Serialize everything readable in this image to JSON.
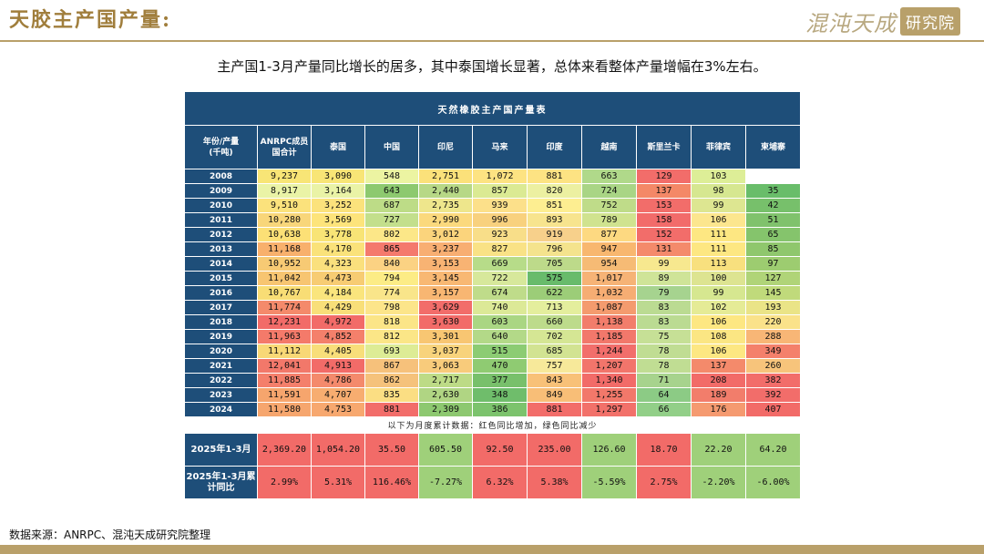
{
  "header": {
    "title": "天胶主产国产量:",
    "logo_text": "混沌天成",
    "logo_badge": "研究院"
  },
  "subtitle": "主产国1-3月产量同比增长的居多，其中泰国增长显著，总体来看整体产量增幅在3%左右。",
  "table": {
    "caption": "天然橡胶主产国产量表",
    "corner_header": "年份/产量\n(千吨)",
    "columns": [
      "ANRPC成员国合计",
      "泰国",
      "中国",
      "印尼",
      "马来",
      "印度",
      "越南",
      "斯里兰卡",
      "菲律宾",
      "柬埔寨"
    ],
    "rows": [
      {
        "year": "2008",
        "values": [
          "9,237",
          "3,090",
          "548",
          "2,751",
          "1,072",
          "881",
          "663",
          "129",
          "103",
          ""
        ]
      },
      {
        "year": "2009",
        "values": [
          "8,917",
          "3,164",
          "643",
          "2,440",
          "857",
          "820",
          "724",
          "137",
          "98",
          "35"
        ]
      },
      {
        "year": "2010",
        "values": [
          "9,510",
          "3,252",
          "687",
          "2,735",
          "939",
          "851",
          "752",
          "153",
          "99",
          "42"
        ]
      },
      {
        "year": "2011",
        "values": [
          "10,280",
          "3,569",
          "727",
          "2,990",
          "996",
          "893",
          "789",
          "158",
          "106",
          "51"
        ]
      },
      {
        "year": "2012",
        "values": [
          "10,638",
          "3,778",
          "802",
          "3,012",
          "923",
          "919",
          "877",
          "152",
          "111",
          "65"
        ]
      },
      {
        "year": "2013",
        "values": [
          "11,168",
          "4,170",
          "865",
          "3,237",
          "827",
          "796",
          "947",
          "131",
          "111",
          "85"
        ]
      },
      {
        "year": "2014",
        "values": [
          "10,952",
          "4,323",
          "840",
          "3,153",
          "669",
          "705",
          "954",
          "99",
          "113",
          "97"
        ]
      },
      {
        "year": "2015",
        "values": [
          "11,042",
          "4,473",
          "794",
          "3,145",
          "722",
          "575",
          "1,017",
          "89",
          "100",
          "127"
        ]
      },
      {
        "year": "2016",
        "values": [
          "10,767",
          "4,184",
          "774",
          "3,157",
          "674",
          "622",
          "1,032",
          "79",
          "99",
          "145"
        ]
      },
      {
        "year": "2017",
        "values": [
          "11,774",
          "4,429",
          "798",
          "3,629",
          "740",
          "713",
          "1,087",
          "83",
          "102",
          "193"
        ]
      },
      {
        "year": "2018",
        "values": [
          "12,231",
          "4,972",
          "818",
          "3,630",
          "603",
          "660",
          "1,138",
          "83",
          "106",
          "220"
        ]
      },
      {
        "year": "2019",
        "values": [
          "11,963",
          "4,852",
          "812",
          "3,301",
          "640",
          "702",
          "1,185",
          "75",
          "108",
          "288"
        ]
      },
      {
        "year": "2020",
        "values": [
          "11,112",
          "4,405",
          "693",
          "3,037",
          "515",
          "685",
          "1,244",
          "78",
          "106",
          "349"
        ]
      },
      {
        "year": "2021",
        "values": [
          "12,041",
          "4,913",
          "867",
          "3,063",
          "470",
          "757",
          "1,207",
          "78",
          "137",
          "260"
        ]
      },
      {
        "year": "2022",
        "values": [
          "11,885",
          "4,786",
          "862",
          "2,717",
          "377",
          "843",
          "1,340",
          "71",
          "208",
          "382"
        ]
      },
      {
        "year": "2023",
        "values": [
          "11,591",
          "4,707",
          "835",
          "2,630",
          "348",
          "849",
          "1,255",
          "64",
          "189",
          "392"
        ]
      },
      {
        "year": "2024",
        "values": [
          "11,580",
          "4,753",
          "881",
          "2,309",
          "386",
          "881",
          "1,297",
          "66",
          "176",
          "407"
        ]
      }
    ],
    "colors": [
      [
        "#f8e576",
        "#f8e576",
        "#ecf4a2",
        "#fbe17a",
        "#fde382",
        "#fde383",
        "#b0d98a",
        "#f26d6a",
        "#ddee97",
        "#ffffff"
      ],
      [
        "#eaf3a6",
        "#eaf3a6",
        "#8dc96f",
        "#b7d886",
        "#dbea93",
        "#ecf0a1",
        "#a9d585",
        "#f48867",
        "#d6e790",
        "#69bd6a"
      ],
      [
        "#fbe27c",
        "#fbe27c",
        "#bddc87",
        "#eee68c",
        "#fce08a",
        "#fdee91",
        "#bfdc89",
        "#f26d6a",
        "#dde691",
        "#77c06b"
      ],
      [
        "#f8d67a",
        "#fde47b",
        "#c3df8c",
        "#fbd97d",
        "#f8d17e",
        "#f7e48e",
        "#d0e38f",
        "#f26b6a",
        "#fce68e",
        "#80c26c"
      ],
      [
        "#fce076",
        "#f8e476",
        "#fce788",
        "#fbd47c",
        "#f8de89",
        "#f7d08b",
        "#fdd981",
        "#f26d6a",
        "#fde782",
        "#85c46c"
      ],
      [
        "#f8b06c",
        "#fae27a",
        "#f4796d",
        "#f8ae72",
        "#f9e286",
        "#f4e38d",
        "#f8b76f",
        "#f48a6b",
        "#fde782",
        "#8fc76d"
      ],
      [
        "#f7ca74",
        "#fae07d",
        "#fbd283",
        "#f8b373",
        "#b7dc89",
        "#bdda8a",
        "#f6bb75",
        "#f7e88f",
        "#f8e07e",
        "#9dcc70"
      ],
      [
        "#f7c571",
        "#f7cc73",
        "#fcec86",
        "#f8b873",
        "#d7e89b",
        "#68bb6b",
        "#f6b376",
        "#cfe498",
        "#dde491",
        "#b0d478"
      ],
      [
        "#f8dd75",
        "#fae57d",
        "#f9e58a",
        "#f8b672",
        "#bfdc8a",
        "#9ccd78",
        "#f6ad73",
        "#a6d38f",
        "#d6e790",
        "#c0da7b"
      ],
      [
        "#f48a6b",
        "#f8df79",
        "#fce58a",
        "#f26d6a",
        "#dce997",
        "#e4ee9d",
        "#f49b6e",
        "#bbdb92",
        "#e5eb96",
        "#eae487"
      ],
      [
        "#f26b68",
        "#f26b68",
        "#fbe587",
        "#f26b68",
        "#aad683",
        "#bddb8b",
        "#f27d6b",
        "#bbdb92",
        "#fde782",
        "#fae28a"
      ],
      [
        "#f47a6a",
        "#f4806b",
        "#fbe687",
        "#f8c672",
        "#b3d988",
        "#d5e694",
        "#f2786b",
        "#c6e096",
        "#fbe683",
        "#f8b676"
      ],
      [
        "#f8d876",
        "#f8de7a",
        "#ddec95",
        "#f8d37c",
        "#8ccc73",
        "#d2e392",
        "#f26e6b",
        "#c0dd93",
        "#fde782",
        "#f4806b"
      ],
      [
        "#f2786a",
        "#f26b68",
        "#f6c17b",
        "#f8cb7b",
        "#8fcb72",
        "#f7e99a",
        "#f2756b",
        "#c0dd93",
        "#f48a6b",
        "#f7c47b"
      ],
      [
        "#f47f6b",
        "#f48a6c",
        "#f5c27b",
        "#bddb86",
        "#78c06b",
        "#f8c178",
        "#f26b68",
        "#a7d38d",
        "#f26b68",
        "#f26d6a"
      ],
      [
        "#f6a56d",
        "#f7ad70",
        "#fbde83",
        "#b0d583",
        "#6fbd6b",
        "#f8be77",
        "#f2786a",
        "#8ccb85",
        "#f27d6b",
        "#f26d6a"
      ],
      [
        "#f6a66e",
        "#f7a86f",
        "#f26d6a",
        "#8dc870",
        "#7cc36d",
        "#f26d6a",
        "#f2716a",
        "#92cf88",
        "#f59a70",
        "#f26b68"
      ]
    ],
    "note": "以下为月度累计数据：红色同比增加，绿色同比减少",
    "summary": [
      {
        "label": "2025年1-3月",
        "values": [
          "2,369.20",
          "1,054.20",
          "35.50",
          "605.50",
          "92.50",
          "235.00",
          "126.60",
          "18.70",
          "22.20",
          "64.20"
        ],
        "colors": [
          "#f26b68",
          "#f26b68",
          "#f26b68",
          "#9fd07a",
          "#f26b68",
          "#f26b68",
          "#9fd07a",
          "#f26b68",
          "#9fd07a",
          "#9fd07a"
        ]
      },
      {
        "label": "2025年1-3月累计同比",
        "values": [
          "2.99%",
          "5.31%",
          "116.46%",
          "-7.27%",
          "6.32%",
          "5.38%",
          "-5.59%",
          "2.75%",
          "-2.20%",
          "-6.00%"
        ],
        "colors": [
          "#f26b68",
          "#f26b68",
          "#f26b68",
          "#9fd07a",
          "#f26b68",
          "#f26b68",
          "#9fd07a",
          "#f26b68",
          "#9fd07a",
          "#9fd07a"
        ]
      }
    ]
  },
  "footer": {
    "source": "数据来源：ANRPC、混沌天成研究院整理"
  }
}
